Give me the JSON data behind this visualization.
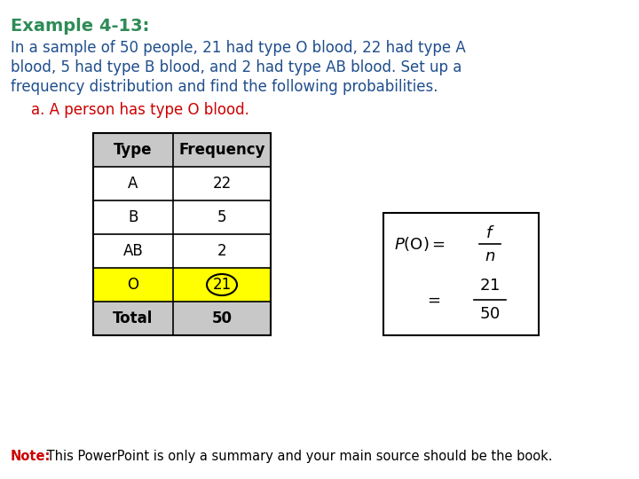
{
  "title": "Example 4-13:",
  "title_color": "#2E8B57",
  "body_lines": [
    "In a sample of 50 people, 21 had type O blood, 22 had type A",
    "blood, 5 had type B blood, and 2 had type AB blood. Set up a",
    "frequency distribution and find the following probabilities."
  ],
  "body_color": "#1F4E8C",
  "sub_text": "a. A person has type O blood.",
  "sub_color": "#CC0000",
  "table_types": [
    "Type",
    "A",
    "B",
    "AB",
    "O",
    "Total"
  ],
  "table_freqs": [
    "Frequency",
    "22",
    "5",
    "2",
    "21",
    "50"
  ],
  "highlight_row": 4,
  "highlight_color": "#FFFF00",
  "header_color": "#C8C8C8",
  "total_color": "#C8C8C8",
  "note_prefix": "Note:",
  "note_prefix_color": "#CC0000",
  "note_text": " This PowerPoint is only a summary and your main source should be the book.",
  "note_color": "#000000",
  "background_color": "#FFFFFF"
}
